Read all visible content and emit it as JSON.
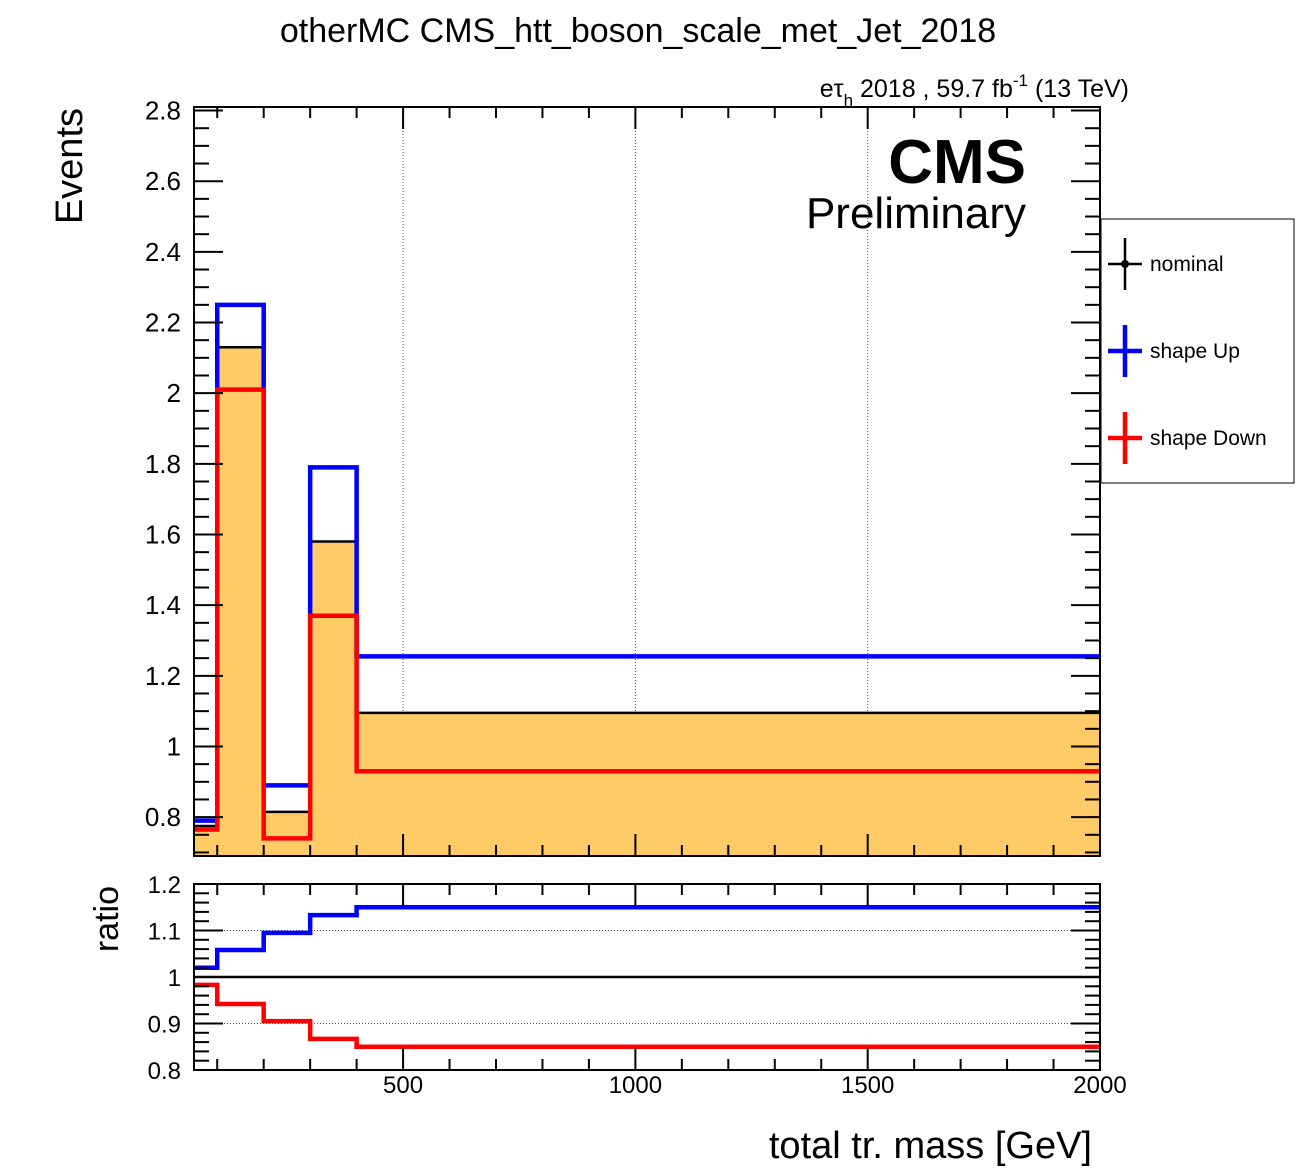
{
  "chart_data": [
    {
      "type": "line",
      "title": "otherMC CMS_htt_boson_scale_met_Jet_2018",
      "channel_label": "eτ",
      "channel_subscript": "h",
      "lumi_label": " 2018 , 59.7 fb",
      "lumi_superscript": "-1",
      "energy_label": " (13 TeV)",
      "cms_label": "CMS",
      "cms_sublabel": "Preliminary",
      "ylabel": "Events",
      "ylim": [
        0.69,
        2.81
      ],
      "y_ticks": [
        "0.8",
        "1",
        "1.2",
        "1.4",
        "1.6",
        "1.8",
        "2",
        "2.2",
        "2.4",
        "2.6",
        "2.8"
      ],
      "x_bins": [
        50,
        100,
        200,
        300,
        400,
        2000
      ],
      "xlim": [
        50,
        2000
      ],
      "grid_x": [
        500,
        1000,
        1500
      ],
      "series": [
        {
          "name": "nominal",
          "color": "#000000",
          "fill": "#fecb66",
          "values": [
            0.775,
            2.13,
            0.815,
            1.58,
            1.095
          ]
        },
        {
          "name": "shape Up",
          "color": "#0000ff",
          "values": [
            0.79,
            2.25,
            0.89,
            1.79,
            1.255
          ]
        },
        {
          "name": "shape Down",
          "color": "#ff0000",
          "values": [
            0.765,
            2.01,
            0.74,
            1.37,
            0.93
          ]
        }
      ],
      "legend": {
        "placement": "right",
        "entries": [
          "nominal",
          "shape Up",
          "shape Down"
        ]
      }
    },
    {
      "type": "line",
      "ylabel": "ratio",
      "xlabel": "total tr. mass [GeV]",
      "ylim": [
        0.8,
        1.2
      ],
      "y_ticks": [
        "0.8",
        "0.9",
        "1",
        "1.1",
        "1.2"
      ],
      "x_ticks": [
        "500",
        "1000",
        "1500",
        "2000"
      ],
      "x_bins": [
        50,
        100,
        200,
        300,
        400,
        2000
      ],
      "xlim": [
        50,
        2000
      ],
      "grid_y": [
        0.9,
        1.1
      ],
      "series": [
        {
          "name": "shape Up",
          "color": "#0000ff",
          "values": [
            1.02,
            1.058,
            1.095,
            1.133,
            1.15
          ]
        },
        {
          "name": "shape Down",
          "color": "#ff0000",
          "values": [
            0.983,
            0.942,
            0.905,
            0.867,
            0.85
          ]
        }
      ],
      "reference_line": 1
    }
  ]
}
